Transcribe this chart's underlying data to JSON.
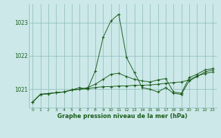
{
  "title": "Graphe pression niveau de la mer (hPa)",
  "background_color": "#cce8e8",
  "grid_color": "#88b8b8",
  "line_color": "#1a5c1a",
  "marker": "+",
  "xlim": [
    -0.5,
    23.5
  ],
  "ylim": [
    1020.45,
    1023.55
  ],
  "yticks": [
    1021,
    1022,
    1023
  ],
  "xticks": [
    0,
    1,
    2,
    3,
    4,
    5,
    6,
    7,
    8,
    9,
    10,
    11,
    12,
    13,
    14,
    15,
    16,
    17,
    18,
    19,
    20,
    21,
    22,
    23
  ],
  "series": [
    [
      1020.62,
      1020.85,
      1020.87,
      1020.9,
      1020.92,
      1020.98,
      1021.05,
      1021.0,
      1021.55,
      1022.55,
      1023.05,
      1023.25,
      1021.95,
      1021.5,
      1021.05,
      1021.0,
      1020.92,
      1021.05,
      1020.88,
      1020.85,
      1021.25,
      1021.38,
      1021.52,
      1021.58
    ],
    [
      1020.62,
      1020.85,
      1020.87,
      1020.9,
      1020.92,
      1020.98,
      1021.0,
      1021.02,
      1021.05,
      1021.08,
      1021.08,
      1021.1,
      1021.1,
      1021.12,
      1021.12,
      1021.13,
      1021.15,
      1021.18,
      1021.2,
      1021.22,
      1021.28,
      1021.4,
      1021.47,
      1021.52
    ],
    [
      1020.62,
      1020.85,
      1020.87,
      1020.9,
      1020.92,
      1020.98,
      1021.0,
      1021.05,
      1021.15,
      1021.3,
      1021.45,
      1021.48,
      1021.38,
      1021.3,
      1021.25,
      1021.22,
      1021.28,
      1021.32,
      1020.92,
      1020.88,
      1021.35,
      1021.45,
      1021.58,
      1021.62
    ]
  ]
}
